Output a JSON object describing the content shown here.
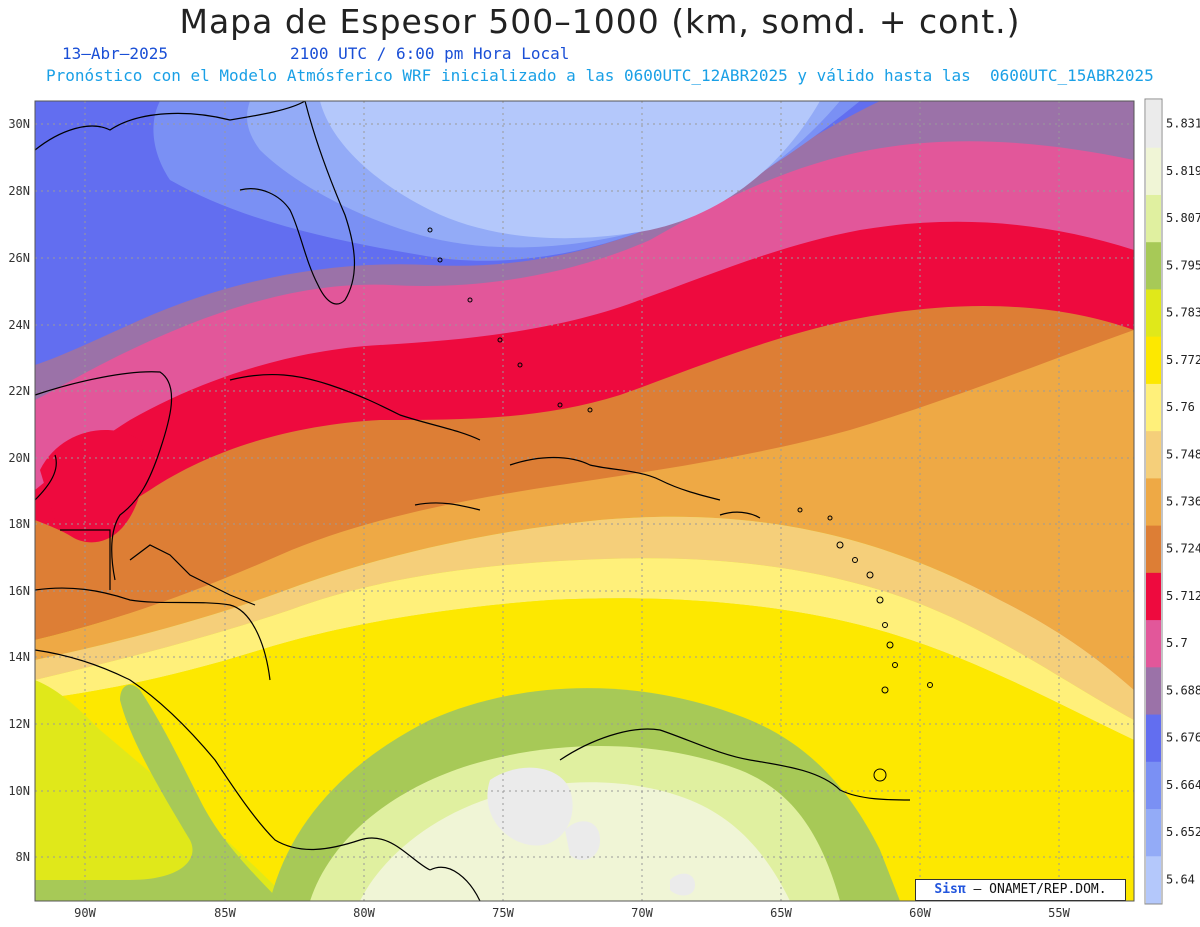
{
  "header": {
    "title": "Mapa de Espesor 500–1000 (km, somd. + cont.)",
    "date": "13–Abr–2025",
    "time": "2100 UTC / 6:00 pm Hora Local",
    "model_line": "Pronóstico con el Modelo Atmósferico WRF inicializado a las 0600UTC_12ABR2025 y válido hasta las  0600UTC_15ABR2025"
  },
  "axes": {
    "lat_labels": [
      "30N",
      "28N",
      "26N",
      "24N",
      "22N",
      "20N",
      "18N",
      "16N",
      "14N",
      "12N",
      "10N",
      "8N"
    ],
    "lon_labels": [
      "90W",
      "85W",
      "80W",
      "75W",
      "70W",
      "65W",
      "60W",
      "55W"
    ]
  },
  "colorbar": {
    "levels": [
      "5.831",
      "5.819",
      "5.807",
      "5.795",
      "5.783",
      "5.772",
      "5.76",
      "5.748",
      "5.736",
      "5.724",
      "5.712",
      "5.7",
      "5.688",
      "5.676",
      "5.664",
      "5.652",
      "5.64"
    ],
    "colors": [
      "#ebebeb",
      "#f0f5d6",
      "#e0f0a0",
      "#a7c957",
      "#e0e81a",
      "#fde800",
      "#fff07a",
      "#f5cf7a",
      "#eea945",
      "#dd7e35",
      "#ee0a3e",
      "#e2579a",
      "#9b72a8",
      "#626ef0",
      "#7a90f4",
      "#93abf7",
      "#b4c8fb"
    ]
  },
  "credit": {
    "brand": "Sisπ",
    "text": "– ONAMET/REP.DOM."
  }
}
